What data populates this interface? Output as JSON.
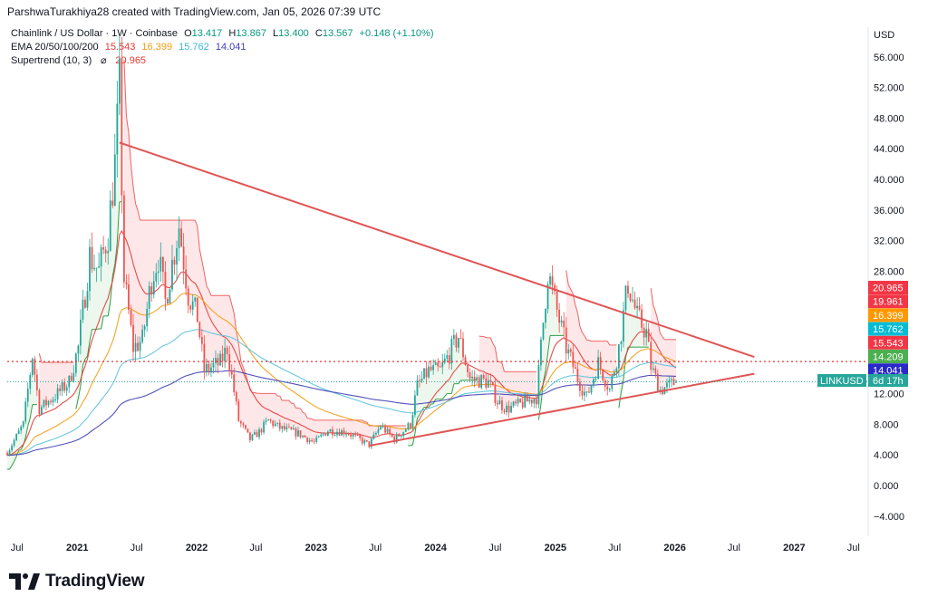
{
  "header": {
    "text": "ParshwaTurakhiya28 created with TradingView.com, Jan 05, 2026 07:39 UTC"
  },
  "legend": {
    "symbol": "Chainlink / US Dollar · 1W · Coinbase",
    "open_label": "O",
    "open": "13.417",
    "high_label": "H",
    "high": "13.867",
    "low_label": "L",
    "low": "13.400",
    "close_label": "C",
    "close": "13.567",
    "change": "+0.148 (+1.10%)",
    "ema_label": "EMA 20/50/100/200",
    "ema_values": [
      "15.543",
      "16.399",
      "15.762",
      "14.041"
    ],
    "supertrend_label": "Supertrend (10, 3)",
    "supertrend_icon": "eye-slash-icon",
    "supertrend_value": "20.965"
  },
  "currency": "USD",
  "footer": {
    "brand": "TradingView",
    "logo": "tradingview-logo"
  },
  "colors": {
    "ema20": "#e53935",
    "ema50": "#f39c12",
    "ema100": "#5bc0de",
    "ema200": "#3f3fb5",
    "supertrend_down": "#f06262",
    "supertrend_up": "#2e9e45",
    "candle_up": "#26a69a",
    "candle_down": "#ef5350",
    "trendline": "#e05555"
  },
  "chart_data": {
    "type": "candlestick",
    "title": "Chainlink / US Dollar",
    "timeframe": "1W",
    "exchange": "Coinbase",
    "y_ticks": [
      "56.000",
      "52.000",
      "48.000",
      "44.000",
      "40.000",
      "36.000",
      "32.000",
      "28.000",
      "12.000",
      "8.000",
      "4.000",
      "0.000",
      "−4.000"
    ],
    "x_ticks": [
      "Jul",
      "2021",
      "Jul",
      "2022",
      "Jul",
      "2023",
      "Jul",
      "2024",
      "Jul",
      "2025",
      "Jul",
      "2026",
      "Jul",
      "2027",
      "Jul"
    ],
    "x_tick_dates": [
      "2020-07-01",
      "2021-01-01",
      "2021-07-01",
      "2022-01-01",
      "2022-07-01",
      "2023-01-01",
      "2023-07-01",
      "2024-01-01",
      "2024-07-01",
      "2025-01-01",
      "2025-07-01",
      "2026-01-01",
      "2026-07-01",
      "2027-01-01",
      "2027-07-01"
    ],
    "price_badges": [
      {
        "label": "20.965",
        "color": "#f23645"
      },
      {
        "label": "19.961",
        "color": "#f23645"
      },
      {
        "label": "16.399",
        "color": "#ff9800"
      },
      {
        "label": "15.762",
        "color": "#00bcd4"
      },
      {
        "label": "15.543",
        "color": "#f23645"
      },
      {
        "label": "14.209",
        "color": "#4caf50"
      },
      {
        "label": "14.041",
        "color": "#2929c9"
      }
    ],
    "symbol_badge": {
      "ticker": "LINKUSD",
      "price": "13.567",
      "countdown": "6d 17h",
      "color": "#26a69a"
    },
    "horizontal_level": 16.2,
    "trendlines": [
      {
        "name": "upper",
        "from": {
          "date": "2021-05-10",
          "value": 44.8
        },
        "to": {
          "date": "2026-09-01",
          "value": 16.8
        }
      },
      {
        "name": "lower",
        "from": {
          "date": "2023-06-12",
          "value": 5.2
        },
        "to": {
          "date": "2026-09-01",
          "value": 14.6
        }
      }
    ],
    "price_path": [
      [
        "2020-06-01",
        4.3
      ],
      [
        "2020-07-20",
        8.0
      ],
      [
        "2020-08-17",
        17.0
      ],
      [
        "2020-09-07",
        10.0
      ],
      [
        "2020-10-05",
        11.0
      ],
      [
        "2020-11-02",
        12.0
      ],
      [
        "2020-12-07",
        13.5
      ],
      [
        "2021-01-04",
        18.0
      ],
      [
        "2021-02-08",
        30.0
      ],
      [
        "2021-03-08",
        28.0
      ],
      [
        "2021-04-05",
        33.0
      ],
      [
        "2021-04-26",
        42.0
      ],
      [
        "2021-05-10",
        52.0
      ],
      [
        "2021-05-24",
        27.0
      ],
      [
        "2021-06-21",
        18.0
      ],
      [
        "2021-07-19",
        19.0
      ],
      [
        "2021-08-16",
        27.0
      ],
      [
        "2021-09-06",
        30.0
      ],
      [
        "2021-09-27",
        24.0
      ],
      [
        "2021-11-08",
        34.0
      ],
      [
        "2021-12-06",
        25.0
      ],
      [
        "2022-01-03",
        22.0
      ],
      [
        "2022-01-24",
        15.0
      ],
      [
        "2022-03-14",
        16.0
      ],
      [
        "2022-04-04",
        18.0
      ],
      [
        "2022-05-09",
        8.5
      ],
      [
        "2022-06-13",
        6.0
      ],
      [
        "2022-07-11",
        7.0
      ],
      [
        "2022-08-08",
        8.5
      ],
      [
        "2022-09-12",
        7.5
      ],
      [
        "2022-11-07",
        6.8
      ],
      [
        "2022-12-26",
        5.6
      ],
      [
        "2023-02-06",
        7.2
      ],
      [
        "2023-04-03",
        7.0
      ],
      [
        "2023-06-12",
        5.3
      ],
      [
        "2023-07-17",
        7.8
      ],
      [
        "2023-08-28",
        6.0
      ],
      [
        "2023-10-16",
        8.0
      ],
      [
        "2023-11-06",
        13.0
      ],
      [
        "2023-12-11",
        15.0
      ],
      [
        "2024-01-15",
        15.0
      ],
      [
        "2024-03-11",
        19.5
      ],
      [
        "2024-04-15",
        14.0
      ],
      [
        "2024-06-10",
        13.5
      ],
      [
        "2024-07-08",
        11.0
      ],
      [
        "2024-08-05",
        10.0
      ],
      [
        "2024-09-09",
        10.5
      ],
      [
        "2024-10-07",
        11.0
      ],
      [
        "2024-11-04",
        11.5
      ],
      [
        "2024-12-09",
        28.0
      ],
      [
        "2024-12-30",
        24.0
      ],
      [
        "2025-02-03",
        18.0
      ],
      [
        "2025-03-10",
        14.0
      ],
      [
        "2025-04-07",
        11.5
      ],
      [
        "2025-05-12",
        16.0
      ],
      [
        "2025-06-16",
        12.5
      ],
      [
        "2025-07-14",
        18.0
      ],
      [
        "2025-08-11",
        26.5
      ],
      [
        "2025-09-08",
        22.0
      ],
      [
        "2025-10-06",
        20.0
      ],
      [
        "2025-10-20",
        15.5
      ],
      [
        "2025-11-17",
        12.5
      ],
      [
        "2025-12-15",
        13.0
      ],
      [
        "2026-01-05",
        13.567
      ]
    ]
  }
}
